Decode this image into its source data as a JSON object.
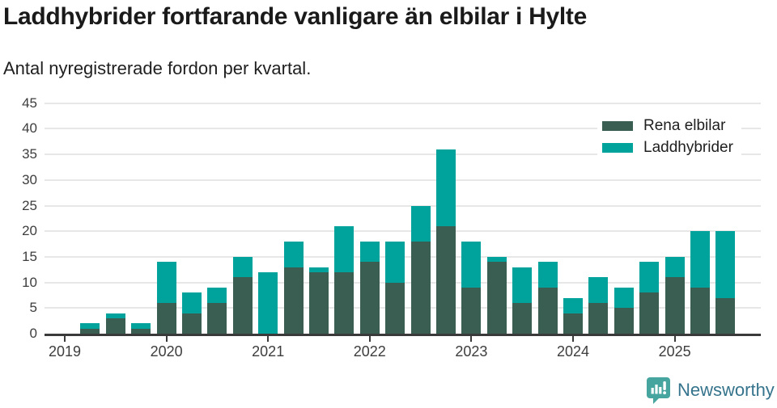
{
  "header": {
    "title": "Laddhybrider fortfarande vanligare än elbilar i Hylte",
    "subtitle": "Antal nyregistrerade fordon per kvartal."
  },
  "chart_data": {
    "type": "bar",
    "stacked": true,
    "title": "Laddhybrider fortfarande vanligare än elbilar i Hylte",
    "subtitle": "Antal nyregistrerade fordon per kvartal.",
    "categories": [
      "2019 Q1",
      "2019 Q2",
      "2019 Q3",
      "2019 Q4",
      "2020 Q1",
      "2020 Q2",
      "2020 Q3",
      "2020 Q4",
      "2021 Q1",
      "2021 Q2",
      "2021 Q3",
      "2021 Q4",
      "2022 Q1",
      "2022 Q2",
      "2022 Q3",
      "2022 Q4",
      "2023 Q1",
      "2023 Q2",
      "2023 Q3",
      "2023 Q4",
      "2024 Q1",
      "2024 Q2",
      "2024 Q3",
      "2024 Q4",
      "2025 Q1",
      "2025 Q2",
      "2025 Q3"
    ],
    "series": [
      {
        "name": "Rena elbilar",
        "color": "#3b5e53",
        "values": [
          0,
          1,
          3,
          1,
          6,
          4,
          6,
          11,
          0,
          13,
          12,
          12,
          14,
          10,
          18,
          21,
          9,
          14,
          6,
          9,
          4,
          6,
          5,
          8,
          11,
          9,
          7
        ]
      },
      {
        "name": "Laddhybrider",
        "color": "#00a39b",
        "values": [
          0,
          1,
          1,
          1,
          8,
          4,
          3,
          4,
          12,
          5,
          1,
          9,
          4,
          8,
          7,
          15,
          9,
          1,
          7,
          5,
          3,
          5,
          4,
          6,
          4,
          11,
          13
        ]
      }
    ],
    "totals": [
      0,
      2,
      4,
      2,
      14,
      8,
      9,
      15,
      12,
      18,
      13,
      21,
      18,
      18,
      25,
      36,
      18,
      15,
      13,
      14,
      7,
      11,
      9,
      14,
      15,
      20,
      20
    ],
    "xlabel": "",
    "ylabel": "",
    "ylim": [
      0,
      45
    ],
    "yticks": [
      0,
      5,
      10,
      15,
      20,
      25,
      30,
      35,
      40,
      45
    ],
    "xticks": [
      {
        "index": 0,
        "label": "2019"
      },
      {
        "index": 4,
        "label": "2020"
      },
      {
        "index": 8,
        "label": "2021"
      },
      {
        "index": 12,
        "label": "2022"
      },
      {
        "index": 16,
        "label": "2023"
      },
      {
        "index": 20,
        "label": "2024"
      },
      {
        "index": 24,
        "label": "2025"
      }
    ],
    "grid": true,
    "legend_position": "top-right",
    "axis_color": "#3a3a3a",
    "gridline_color": "#e7e7e7"
  },
  "footer": {
    "brand": "Newsworthy",
    "text_color": "#35748c",
    "icon_color": "#47a5a0",
    "icon": "newsworthy-speech-bubble-barchart-icon"
  }
}
